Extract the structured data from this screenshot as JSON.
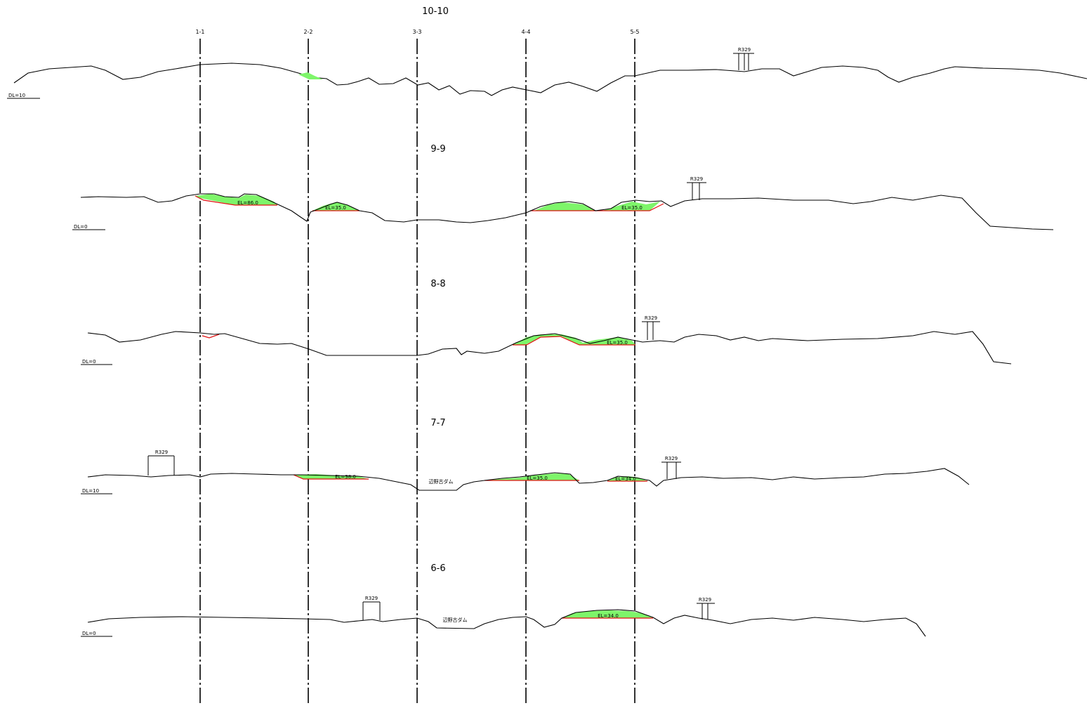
{
  "columns": [
    {
      "label": "1-1"
    },
    {
      "label": "2-2"
    },
    {
      "label": "3-3"
    },
    {
      "label": "4-4"
    },
    {
      "label": "5-5"
    }
  ],
  "sections": [
    {
      "title": "10-10",
      "datum": "DL=10",
      "road_labels": [
        "R329"
      ],
      "el_labels": [],
      "dam_label": ""
    },
    {
      "title": "9-9",
      "datum": "DL=0",
      "road_labels": [
        "R329"
      ],
      "el_labels": [
        "EL=86.0",
        "EL=35.0",
        "EL=35.0"
      ],
      "dam_label": ""
    },
    {
      "title": "8-8",
      "datum": "DL=0",
      "road_labels": [
        "R329"
      ],
      "el_labels": [
        "EL=35.0"
      ],
      "dam_label": ""
    },
    {
      "title": "7-7",
      "datum": "DL=10",
      "road_labels": [
        "R329",
        "R329"
      ],
      "el_labels": [
        "EL=38.0",
        "EL=35.0",
        "EL=34.0"
      ],
      "dam_label": "辺野古ダム"
    },
    {
      "title": "6-6",
      "datum": "DL=0",
      "road_labels": [
        "R329",
        "R329"
      ],
      "el_labels": [
        "EL=34.0"
      ],
      "dam_label": "辺野古ダム"
    }
  ],
  "colors": {
    "fill_area": "#7ef56a",
    "base_line": "#e01010",
    "ground_line": "#000000"
  }
}
